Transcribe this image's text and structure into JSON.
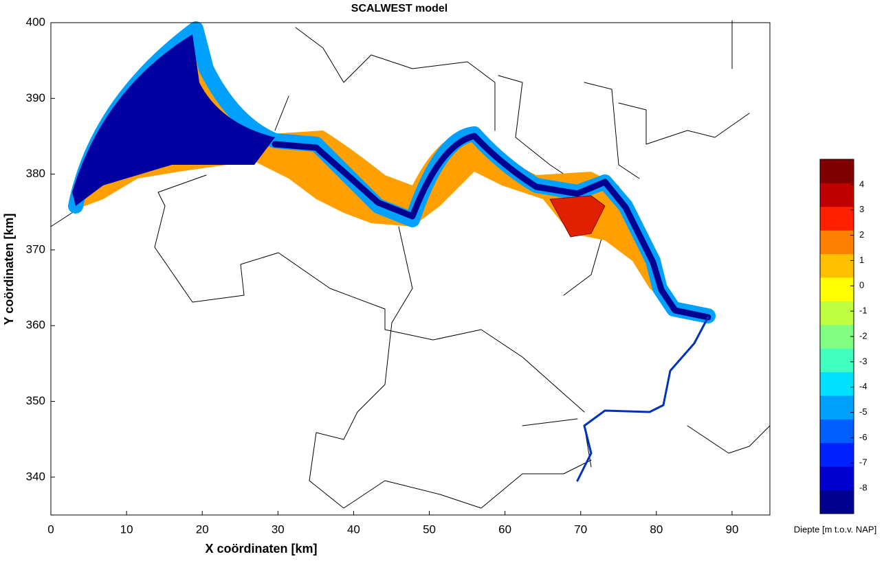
{
  "chart_data": {
    "type": "map",
    "title": "SCALWEST model",
    "x_label": "X coördinaten [km]",
    "y_label": "Y coördinaten [km]",
    "xlim": [
      0,
      95
    ],
    "ylim": [
      335,
      400
    ],
    "xticks": [
      0,
      10,
      20,
      30,
      40,
      50,
      60,
      70,
      80,
      90
    ],
    "yticks": [
      340,
      350,
      360,
      370,
      380,
      390,
      400
    ],
    "colorbar": {
      "label": "Diepte [m t.o.v. NAP]",
      "clim": [
        -9,
        5
      ],
      "ticks": [
        -8,
        -7,
        -6,
        -5,
        -4,
        -3,
        -2,
        -1,
        0,
        1,
        2,
        3,
        4
      ],
      "colors": [
        "#00008f",
        "#0000d0",
        "#0020ff",
        "#0060ff",
        "#00a0ff",
        "#00e0ff",
        "#40ffbf",
        "#80ff80",
        "#c0ff40",
        "#ffff00",
        "#ffc000",
        "#ff8000",
        "#ff2000",
        "#c00000",
        "#800000"
      ]
    }
  }
}
